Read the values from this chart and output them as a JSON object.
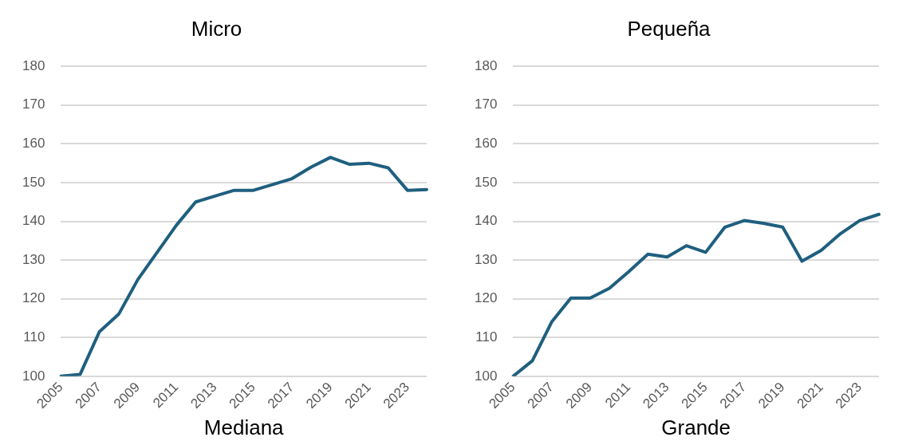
{
  "chart_data": [
    {
      "type": "line",
      "title": "Micro",
      "categories": [
        "2005",
        null,
        "2007",
        null,
        "2009",
        null,
        "2011",
        null,
        "2013",
        null,
        "2015",
        null,
        "2017",
        null,
        "2019",
        null,
        "2021",
        null,
        "2023",
        null
      ],
      "series": [
        {
          "color": "#1f5f7f",
          "values": [
            100,
            100.5,
            111.5,
            116,
            125,
            132,
            139,
            145,
            146.5,
            148,
            148,
            149.5,
            151,
            154,
            156.5,
            154.7,
            155,
            153.8,
            148,
            148.2
          ]
        }
      ],
      "ylim": [
        100,
        180
      ],
      "yticks": [
        100,
        110,
        120,
        130,
        140,
        150,
        160,
        170,
        180
      ],
      "grid": "y",
      "legend": false,
      "marker": "none",
      "line_style": "solid",
      "annotations": [
        "Mediana"
      ]
    },
    {
      "type": "line",
      "title": "Pequeña",
      "categories": [
        "2005",
        null,
        "2007",
        null,
        "2009",
        null,
        "2011",
        null,
        "2013",
        null,
        "2015",
        null,
        "2017",
        null,
        "2019",
        null,
        "2021",
        null,
        "2023",
        null
      ],
      "series": [
        {
          "color": "#1f5f7f",
          "values": [
            100,
            104,
            114,
            120.2,
            120.2,
            122.7,
            127,
            131.5,
            130.8,
            133.7,
            132,
            138.5,
            140.2,
            139.5,
            138.5,
            129.7,
            132.5,
            136.8,
            140.2,
            141.8
          ]
        }
      ],
      "ylim": [
        100,
        180
      ],
      "yticks": [
        100,
        110,
        120,
        130,
        140,
        150,
        160,
        170,
        180
      ],
      "grid": "y",
      "legend": false,
      "marker": "none",
      "line_style": "solid",
      "annotations": [
        "Grande"
      ]
    }
  ]
}
